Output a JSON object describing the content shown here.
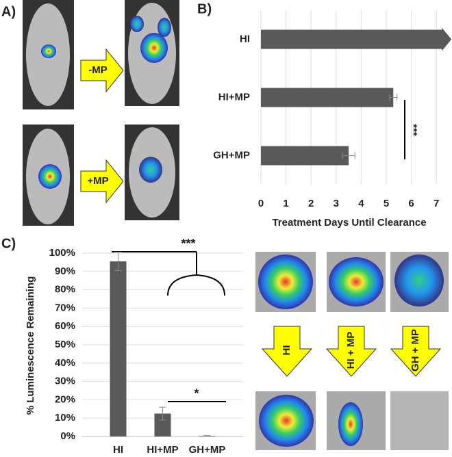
{
  "panel_labels": [
    "A)",
    "B)",
    "C)"
  ],
  "panel_a": {
    "arrows": [
      "-MP",
      "+MP"
    ]
  },
  "panel_c_images": {
    "arrows": [
      "HI",
      "HI + MP",
      "GH + MP"
    ]
  },
  "chart_data": [
    {
      "type": "hbar",
      "categories": [
        "HI",
        "HI+MP",
        "GH+MP"
      ],
      "values": [
        7.6,
        5.28,
        3.5
      ],
      "errors": [
        0,
        0.15,
        0.25
      ],
      "color": "#595959",
      "xlim": [
        0,
        7.6
      ],
      "xticks": [
        0,
        1,
        2,
        3,
        4,
        5,
        6,
        7
      ],
      "x_label": "Treatment Days Until Clearance",
      "grid": true,
      "annotations": [
        "***"
      ]
    },
    {
      "type": "bar",
      "categories": [
        "HI",
        "HI+MP",
        "GH+MP"
      ],
      "values": [
        95.5,
        12.5,
        0.3
      ],
      "errors": [
        5,
        3.5,
        0.2
      ],
      "color": "#595959",
      "ylim": [
        0,
        100
      ],
      "yticks": [
        {
          "value": 0,
          "label": "0%"
        },
        {
          "value": 10,
          "label": "10%"
        },
        {
          "value": 20,
          "label": "20%"
        },
        {
          "value": 30,
          "label": "30%"
        },
        {
          "value": 40,
          "label": "40%"
        },
        {
          "value": 50,
          "label": "50%"
        },
        {
          "value": 60,
          "label": "60%"
        },
        {
          "value": 70,
          "label": "70%"
        },
        {
          "value": 80,
          "label": "80%"
        },
        {
          "value": 90,
          "label": "90%"
        },
        {
          "value": 100,
          "label": "100%"
        }
      ],
      "y_label": "% Luminescence Remaining",
      "grid": true,
      "annotations": [
        "***",
        "*"
      ]
    }
  ]
}
